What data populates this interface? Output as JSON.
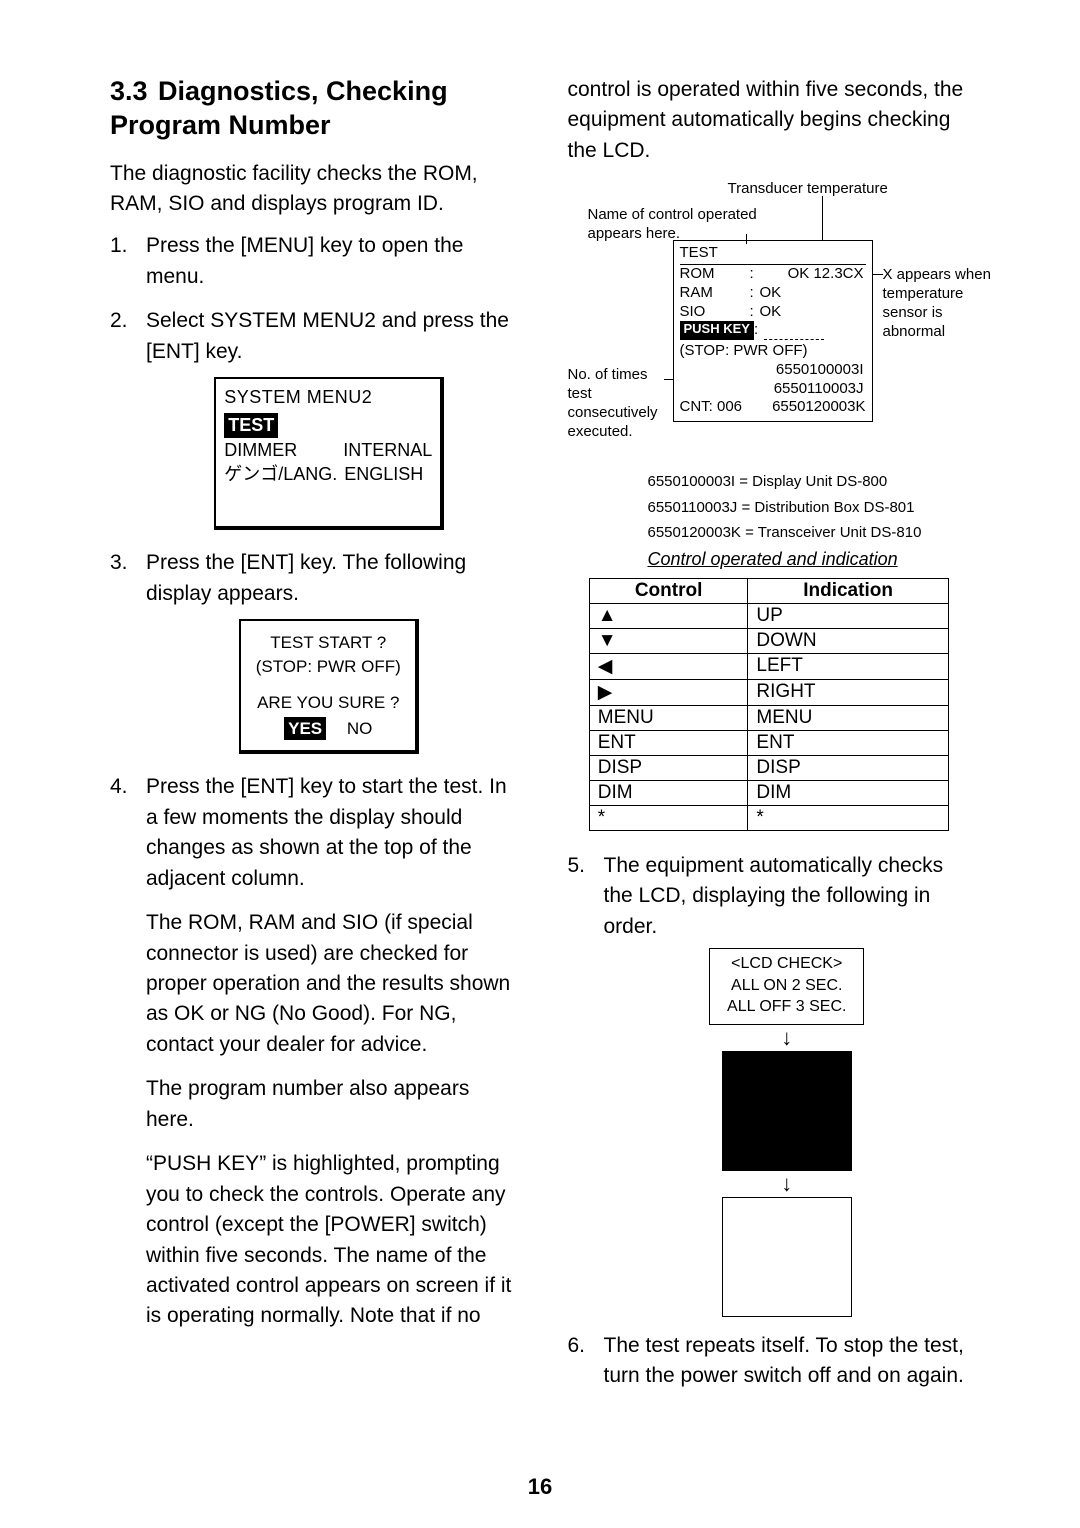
{
  "heading": {
    "num": "3.3",
    "title": "Diagnostics, Checking Program Number"
  },
  "left": {
    "intro": "The diagnostic facility checks the ROM, RAM, SIO and displays program ID.",
    "steps": {
      "s1": {
        "no": "1.",
        "text": "Press the [MENU] key to open the menu."
      },
      "s2": {
        "no": "2.",
        "text": "Select SYSTEM MENU2 and press the [ENT] key."
      },
      "s3": {
        "no": "3.",
        "text": "Press the [ENT] key. The following display appears."
      },
      "s4": {
        "no": "4.",
        "p1": "Press the [ENT] key to start the test. In a few moments the display should changes as shown at the top of the adjacent column.",
        "p2": "The ROM, RAM and SIO (if special connector is used) are checked for proper operation and the results shown as OK or NG (No Good). For NG, contact your dealer for advice.",
        "p3": "The program number also appears here.",
        "p4": "“PUSH KEY” is highlighted, prompting you to check the controls. Operate any control (except the [POWER] switch) within five seconds. The name of the activated control appears on screen if it is operating normally. Note that if no"
      }
    },
    "fig1": {
      "title": "SYSTEM MENU2",
      "test": "TEST",
      "row1a": "DIMMER",
      "row1b": "INTERNAL",
      "row2a": "ゲンゴ/LANG.",
      "row2b": "ENGLISH"
    },
    "fig2": {
      "l1": "TEST START ?",
      "l2": "(STOP: PWR OFF)",
      "l3": "ARE YOU SURE ?",
      "yes": "YES",
      "no": "NO"
    }
  },
  "right": {
    "cont": "control is operated within five seconds, the equipment automatically begins checking the LCD.",
    "diag": {
      "toplabel": "Transducer temperature",
      "nameof": "Name of control operated appears here.",
      "box": {
        "test": "TEST",
        "rom_k": "ROM",
        "rom_v": "OK  12.3CX",
        "ram_k": "RAM",
        "ram_v": "OK",
        "sio_k": "SIO",
        "sio_v": "OK",
        "push": "PUSH KEY",
        "stop": "(STOP: PWR OFF)",
        "id1": "6550100003I",
        "id2": "6550110003J",
        "cnt": "CNT: 006",
        "id3": "6550120003K"
      },
      "sideR": "X appears when temperature sensor is abnormal",
      "sideL": "No. of times test consecutively executed."
    },
    "legend": {
      "l1": "6550100003I = Display Unit DS-800",
      "l2": "6550110003J = Distribution Box DS-801",
      "l3": "6550120003K = Transceiver Unit DS-810",
      "cap": "Control operated and indication"
    },
    "table": {
      "h1": "Control",
      "h2": "Indication",
      "rows": [
        {
          "a": "▲",
          "b": "UP"
        },
        {
          "a": "▼",
          "b": "DOWN"
        },
        {
          "a": "◀",
          "b": "LEFT"
        },
        {
          "a": "▶",
          "b": "RIGHT"
        },
        {
          "a": "MENU",
          "b": "MENU"
        },
        {
          "a": "ENT",
          "b": "ENT"
        },
        {
          "a": "DISP",
          "b": "DISP"
        },
        {
          "a": "DIM",
          "b": "DIM"
        },
        {
          "a": "*",
          "b": "*"
        }
      ]
    },
    "steps": {
      "s5": {
        "no": "5.",
        "text": "The equipment automatically checks the LCD, displaying the following in order."
      },
      "s6": {
        "no": "6.",
        "text": "The test repeats itself. To stop the test, turn the power switch off and on again."
      }
    },
    "lcd": {
      "l1": "<LCD CHECK>",
      "l2": "ALL ON 2 SEC.",
      "l3": "ALL OFF 3 SEC."
    }
  },
  "page": "16"
}
